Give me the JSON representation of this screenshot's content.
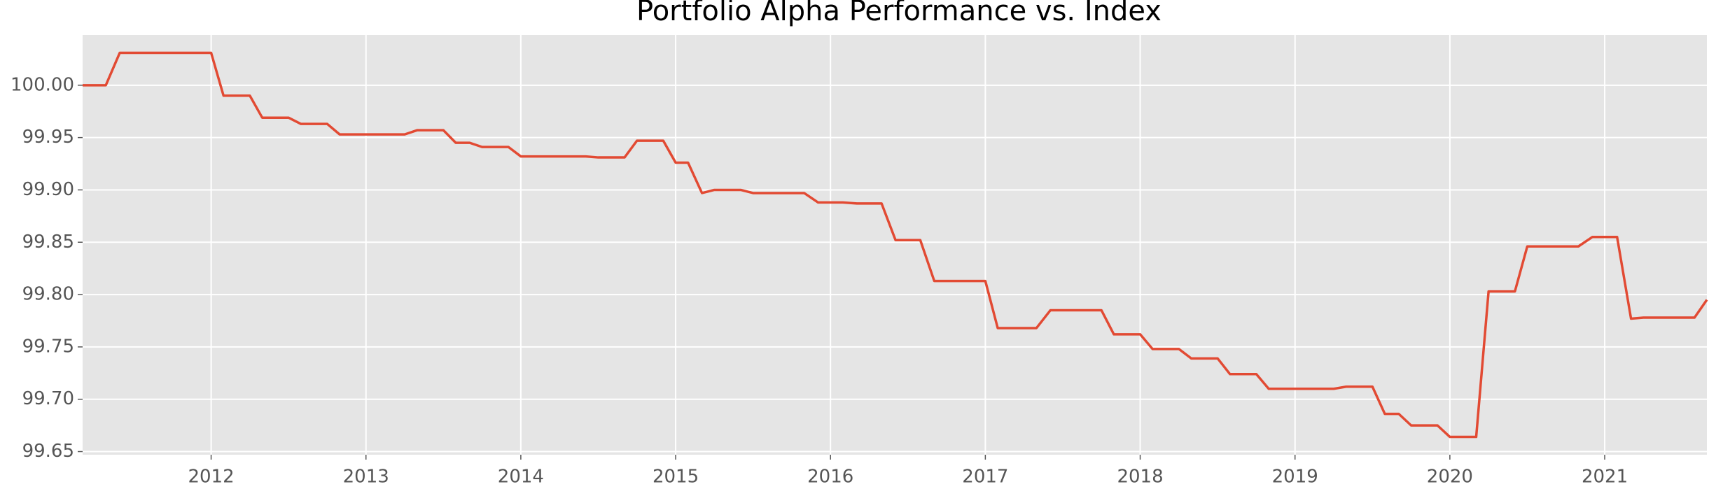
{
  "chart_data": {
    "type": "line",
    "title": "Portfolio Alpha Performance vs. Index",
    "x": [
      2011.17,
      2011.32,
      2011.41,
      2012.0,
      2012.08,
      2012.25,
      2012.33,
      2012.5,
      2012.58,
      2012.75,
      2012.83,
      2013.25,
      2013.33,
      2013.5,
      2013.58,
      2013.67,
      2013.75,
      2013.92,
      2014.0,
      2014.42,
      2014.5,
      2014.67,
      2014.75,
      2014.92,
      2015.0,
      2015.08,
      2015.17,
      2015.25,
      2015.42,
      2015.5,
      2015.83,
      2015.92,
      2016.08,
      2016.17,
      2016.33,
      2016.42,
      2016.58,
      2016.67,
      2017.0,
      2017.08,
      2017.33,
      2017.42,
      2017.75,
      2017.83,
      2018.0,
      2018.08,
      2018.25,
      2018.33,
      2018.5,
      2018.58,
      2018.75,
      2018.83,
      2019.25,
      2019.33,
      2019.5,
      2019.58,
      2019.67,
      2019.75,
      2019.92,
      2020.0,
      2020.17,
      2020.25,
      2020.42,
      2020.5,
      2020.83,
      2020.92,
      2021.08,
      2021.17,
      2021.25,
      2021.58,
      2021.66
    ],
    "series": [
      {
        "name": "Portfolio Alpha",
        "color": "#e24a33",
        "values": [
          100.0,
          100.0,
          100.031,
          100.031,
          99.99,
          99.99,
          99.969,
          99.969,
          99.963,
          99.963,
          99.953,
          99.953,
          99.957,
          99.957,
          99.945,
          99.945,
          99.941,
          99.941,
          99.932,
          99.932,
          99.931,
          99.931,
          99.947,
          99.947,
          99.926,
          99.926,
          99.897,
          99.9,
          99.9,
          99.897,
          99.897,
          99.888,
          99.888,
          99.887,
          99.887,
          99.852,
          99.852,
          99.813,
          99.813,
          99.768,
          99.768,
          99.785,
          99.785,
          99.762,
          99.762,
          99.748,
          99.748,
          99.739,
          99.739,
          99.724,
          99.724,
          99.71,
          99.71,
          99.712,
          99.712,
          99.686,
          99.686,
          99.675,
          99.675,
          99.664,
          99.664,
          99.803,
          99.803,
          99.846,
          99.846,
          99.855,
          99.855,
          99.777,
          99.778,
          99.778,
          99.795
        ]
      }
    ],
    "xlim": [
      2011.17,
      2021.66
    ],
    "ylim": [
      99.647,
      100.048
    ],
    "xticks": [
      2012,
      2013,
      2014,
      2015,
      2016,
      2017,
      2018,
      2019,
      2020,
      2021
    ],
    "yticks": [
      {
        "value": 99.65,
        "label": "99.65"
      },
      {
        "value": 99.7,
        "label": "99.70"
      },
      99.75,
      {
        "value": 99.8,
        "label": "99.80"
      },
      99.85,
      {
        "value": 99.9,
        "label": "99.90"
      },
      99.95,
      {
        "value": 100,
        "label": "100.00"
      }
    ],
    "grid": true
  }
}
